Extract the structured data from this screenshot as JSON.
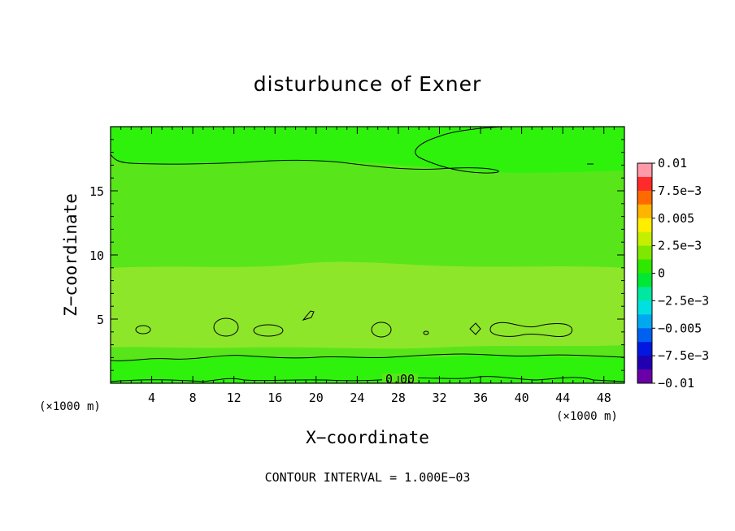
{
  "chart_data": {
    "type": "contour",
    "title": "disturbunce of Exner",
    "xlabel": "X−coordinate",
    "ylabel": "Z−coordinate",
    "x_unit_left": "(×1000 m)",
    "x_unit_right": "(×1000 m)",
    "xlim": [
      0,
      50
    ],
    "ylim": [
      0,
      20
    ],
    "x_ticks": [
      4,
      8,
      12,
      16,
      20,
      24,
      28,
      32,
      36,
      40,
      44,
      48
    ],
    "y_ticks": [
      5,
      10,
      15
    ],
    "contour_interval_text": "CONTOUR INTERVAL = 1.000E−03",
    "contour_label": "0.00",
    "colorbar": {
      "labels": [
        "0.01",
        "7.5e−3",
        "0.005",
        "2.5e−3",
        "0",
        "−2.5e−3",
        "−0.005",
        "−7.5e−3",
        "−0.01"
      ],
      "colors": [
        "#ff9aa8",
        "#ff2a2a",
        "#ff6a00",
        "#ffb400",
        "#ffee00",
        "#c4f000",
        "#7ee800",
        "#2ee800",
        "#00e834",
        "#00e8a0",
        "#00e0e0",
        "#00a8f0",
        "#0060f0",
        "#0018e0",
        "#2000b0",
        "#6a00a8"
      ]
    },
    "bands_near_zero": {
      "slightly_positive_color": "#8ee62a",
      "near_zero_color": "#58e61a",
      "slightly_negative_color": "#2ef20c"
    }
  }
}
